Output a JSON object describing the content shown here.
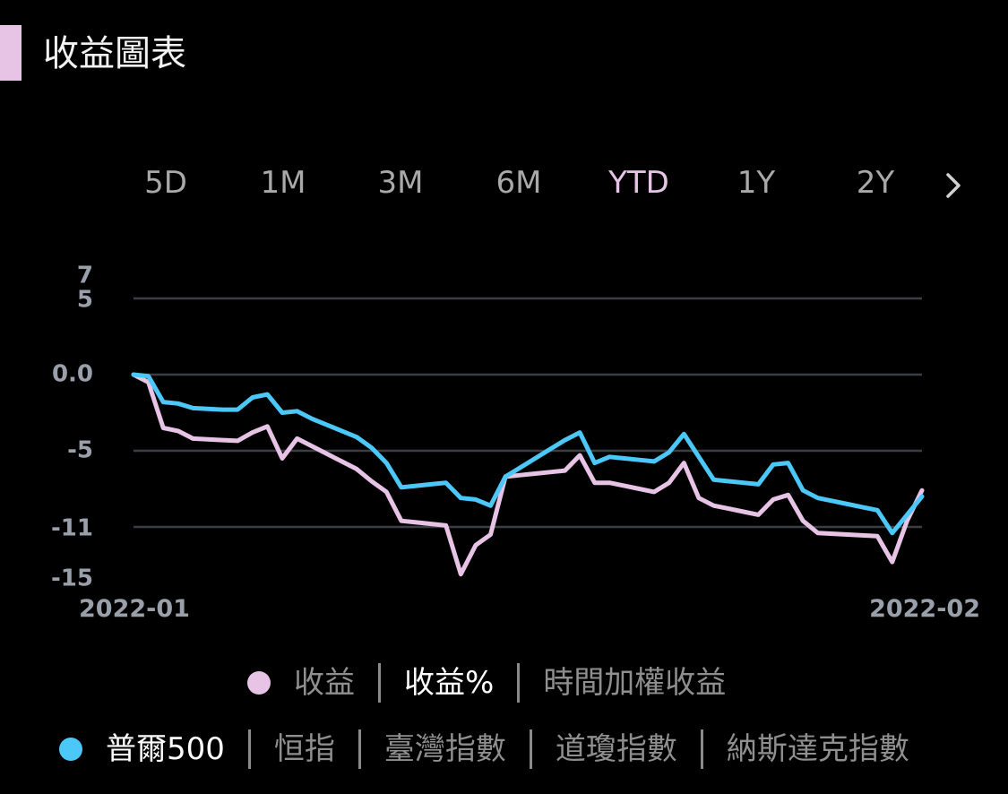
{
  "header": {
    "title": "收益圖表",
    "accent_color": "#e7c3e6"
  },
  "range_tabs": [
    {
      "label": "5D",
      "active": false
    },
    {
      "label": "1M",
      "active": false
    },
    {
      "label": "3M",
      "active": false
    },
    {
      "label": "6M",
      "active": false
    },
    {
      "label": "YTD",
      "active": true
    },
    {
      "label": "1Y",
      "active": false
    },
    {
      "label": "2Y",
      "active": false
    }
  ],
  "range_next_icon": "chevron-right-icon",
  "metric_tabs": {
    "dot_color": "#e7c3e6",
    "items": [
      {
        "label": "收益",
        "selected": false
      },
      {
        "label": "收益%",
        "selected": true
      },
      {
        "label": "時間加權收益",
        "selected": false
      }
    ]
  },
  "benchmark_tabs": {
    "dot_color": "#4cc8f8",
    "items": [
      {
        "label": "普爾500",
        "selected": true
      },
      {
        "label": "恒指",
        "selected": false
      },
      {
        "label": "臺灣指數",
        "selected": false
      },
      {
        "label": "道瓊指數",
        "selected": false
      },
      {
        "label": "納斯達克指數",
        "selected": false
      }
    ]
  },
  "chart_data": {
    "type": "line",
    "title": "",
    "xlabel": "",
    "ylabel": "",
    "ylim": [
      -15,
      7
    ],
    "y_tick_labels": [
      "7",
      "5",
      "0.0",
      "-5",
      "-11",
      "-15"
    ],
    "y_tick_values": [
      7,
      5,
      0,
      -5,
      -11,
      -15
    ],
    "gridlines": [
      5,
      0,
      -5,
      -10
    ],
    "x_tick_labels": [
      "2022-01",
      "2022-02"
    ],
    "grid": true,
    "series": [
      {
        "color": "#e7c3e6",
        "values": [
          0.0,
          -0.5,
          -3.5,
          -3.7,
          -4.2,
          -4.25,
          -4.3,
          -4.35,
          -3.8,
          -3.4,
          -5.5,
          -4.2,
          -4.7,
          -5.2,
          -5.7,
          -6.2,
          -7.0,
          -7.7,
          -9.6,
          -9.7,
          -9.8,
          -9.9,
          -13.1,
          -11.2,
          -10.5,
          -6.7,
          -6.6,
          -6.5,
          -6.4,
          -6.3,
          -5.3,
          -7.1,
          -7.1,
          -7.3,
          -7.5,
          -7.7,
          -7.1,
          -5.8,
          -8.1,
          -8.6,
          -8.8,
          -9.0,
          -9.2,
          -8.2,
          -7.9,
          -9.6,
          -10.4,
          -10.45,
          -10.5,
          -10.55,
          -10.6,
          -12.3,
          -9.6,
          -7.6
        ]
      },
      {
        "color": "#4cc8f8",
        "values": [
          0.0,
          -0.1,
          -1.8,
          -1.9,
          -2.2,
          -2.25,
          -2.3,
          -2.3,
          -1.5,
          -1.3,
          -2.5,
          -2.4,
          -2.9,
          -3.3,
          -3.7,
          -4.1,
          -4.8,
          -5.8,
          -7.4,
          -7.3,
          -7.2,
          -7.1,
          -8.1,
          -8.2,
          -8.6,
          -6.7,
          -6.1,
          -5.5,
          -4.9,
          -4.3,
          -3.8,
          -5.8,
          -5.4,
          -5.5,
          -5.6,
          -5.7,
          -5.1,
          -3.9,
          -5.4,
          -6.9,
          -7.0,
          -7.1,
          -7.2,
          -5.9,
          -5.8,
          -7.6,
          -8.1,
          -8.3,
          -8.5,
          -8.7,
          -8.9,
          -10.4,
          -9.2,
          -8.0
        ]
      }
    ]
  }
}
